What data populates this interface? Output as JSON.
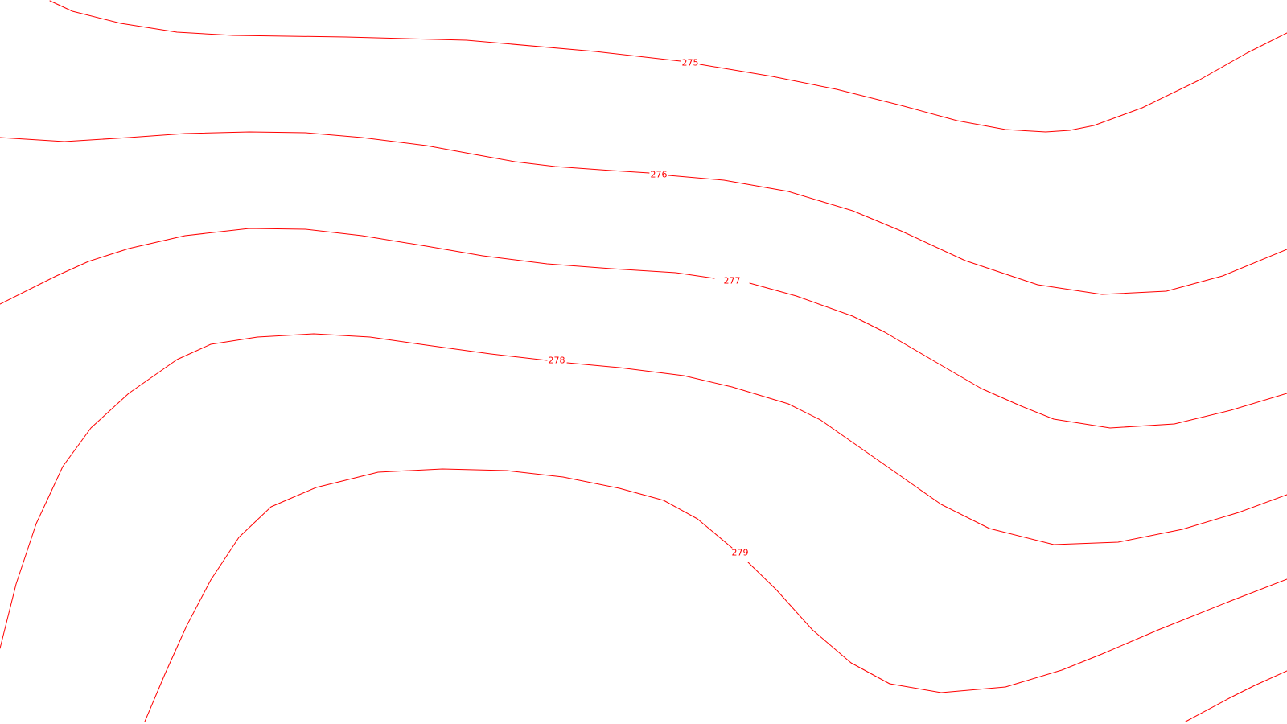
{
  "map": {
    "style": {
      "background_color": "#ffffff",
      "contour_color": "#ff0000"
    },
    "contours": [
      {
        "label": "275",
        "path_id": "c275"
      },
      {
        "label": "276",
        "path_id": "c276"
      },
      {
        "label": "277",
        "path_id": "c277"
      },
      {
        "label": "278",
        "path_id": "c278"
      },
      {
        "label": "279",
        "path_id": "c279"
      },
      {
        "label": "",
        "path_id": "c280"
      }
    ]
  }
}
